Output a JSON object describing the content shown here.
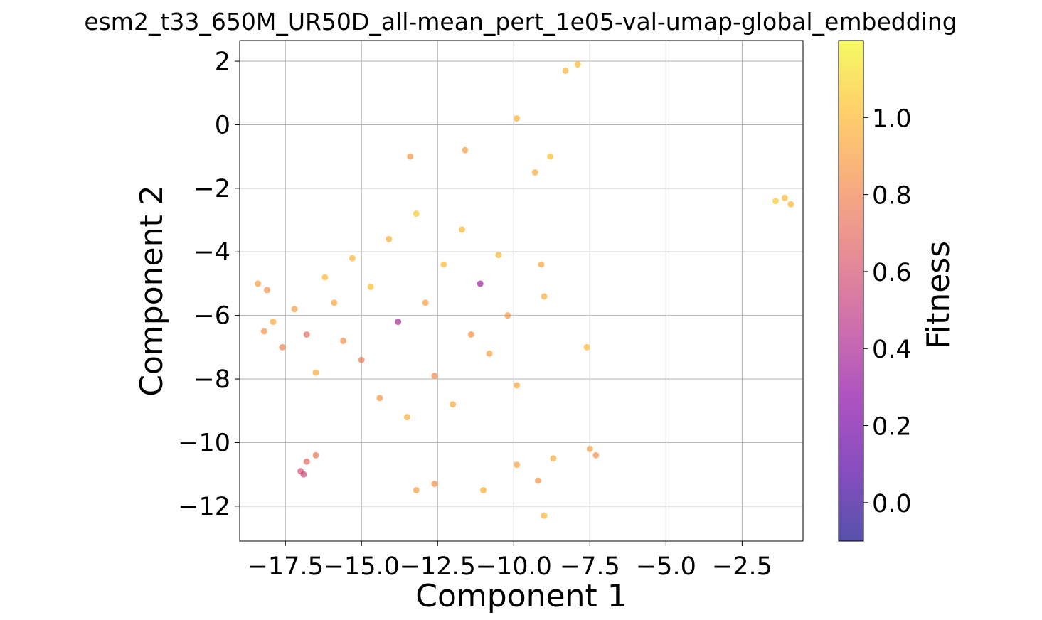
{
  "chart_data": {
    "type": "scatter",
    "title": "esm2_t33_650M_UR50D_all-mean_pert_1e05-val-umap-global_embedding",
    "xlabel": "Component 1",
    "ylabel": "Component 2",
    "xlim": [
      -19.0,
      -0.5
    ],
    "ylim": [
      -13.1,
      2.65
    ],
    "xticks": [
      -17.5,
      -15.0,
      -12.5,
      -10.0,
      -7.5,
      -5.0,
      -2.5
    ],
    "xtick_labels": [
      "−17.5",
      "−15.0",
      "−12.5",
      "−10.0",
      "−7.5",
      "−5.0",
      "−2.5"
    ],
    "yticks": [
      2,
      0,
      -2,
      -4,
      -6,
      -8,
      -10,
      -12
    ],
    "ytick_labels": [
      "2",
      "0",
      "−2",
      "−4",
      "−6",
      "−8",
      "−10",
      "−12"
    ],
    "grid": true,
    "colormap": "plasma",
    "color_range": [
      -0.1,
      1.2
    ],
    "colorbar": {
      "label": "Fitness",
      "ticks": [
        0.0,
        0.2,
        0.4,
        0.6,
        0.8,
        1.0
      ],
      "tick_labels": [
        "0.0",
        "0.2",
        "0.4",
        "0.6",
        "0.8",
        "1.0"
      ]
    },
    "points": [
      [
        -18.2,
        -6.5,
        0.85
      ],
      [
        -17.9,
        -6.2,
        0.95
      ],
      [
        -17.6,
        -7.0,
        0.8
      ],
      [
        -17.2,
        -5.8,
        0.9
      ],
      [
        -16.8,
        -6.6,
        0.7
      ],
      [
        -16.5,
        -7.8,
        0.95
      ],
      [
        -16.2,
        -4.8,
        1.0
      ],
      [
        -15.9,
        -5.6,
        0.92
      ],
      [
        -15.6,
        -6.8,
        0.85
      ],
      [
        -15.3,
        -4.2,
        0.98
      ],
      [
        -15.0,
        -7.4,
        0.78
      ],
      [
        -14.7,
        -5.1,
        1.02
      ],
      [
        -14.4,
        -8.6,
        0.88
      ],
      [
        -14.1,
        -3.6,
        0.96
      ],
      [
        -13.8,
        -6.2,
        0.4
      ],
      [
        -13.5,
        -9.2,
        0.95
      ],
      [
        -13.2,
        -2.8,
        1.05
      ],
      [
        -12.9,
        -5.6,
        0.9
      ],
      [
        -12.6,
        -7.9,
        0.82
      ],
      [
        -12.3,
        -4.4,
        1.0
      ],
      [
        -12.0,
        -8.8,
        0.94
      ],
      [
        -11.7,
        -3.3,
        0.97
      ],
      [
        -11.4,
        -6.6,
        0.86
      ],
      [
        -11.1,
        -5.0,
        0.35
      ],
      [
        -10.8,
        -7.2,
        0.91
      ],
      [
        -10.5,
        -4.1,
        0.99
      ],
      [
        -10.2,
        -6.0,
        0.88
      ],
      [
        -9.9,
        -8.2,
        0.93
      ],
      [
        -18.4,
        -5.0,
        0.9
      ],
      [
        -18.1,
        -5.2,
        0.85
      ],
      [
        -17.0,
        -10.9,
        0.6
      ],
      [
        -16.8,
        -10.6,
        0.7
      ],
      [
        -16.5,
        -10.4,
        0.75
      ],
      [
        -16.9,
        -11.0,
        0.55
      ],
      [
        -13.2,
        -11.5,
        0.9
      ],
      [
        -12.6,
        -11.3,
        0.85
      ],
      [
        -11.0,
        -11.5,
        0.95
      ],
      [
        -9.9,
        -10.7,
        0.92
      ],
      [
        -9.2,
        -11.2,
        0.88
      ],
      [
        -9.0,
        -12.3,
        0.98
      ],
      [
        -8.7,
        -10.5,
        0.94
      ],
      [
        -7.5,
        -10.2,
        0.9
      ],
      [
        -7.3,
        -10.4,
        0.85
      ],
      [
        -7.6,
        -7.0,
        1.0
      ],
      [
        -9.0,
        -5.4,
        0.96
      ],
      [
        -9.1,
        -4.4,
        0.92
      ],
      [
        -9.3,
        -1.5,
        0.95
      ],
      [
        -8.8,
        -1.0,
        1.02
      ],
      [
        -9.9,
        0.2,
        0.98
      ],
      [
        -11.6,
        -0.8,
        0.9
      ],
      [
        -8.3,
        1.7,
        0.97
      ],
      [
        -7.9,
        1.9,
        1.0
      ],
      [
        -1.4,
        -2.4,
        1.05
      ],
      [
        -1.1,
        -2.3,
        1.0
      ],
      [
        -0.9,
        -2.5,
        0.98
      ],
      [
        -13.4,
        -1.0,
        0.88
      ]
    ]
  }
}
